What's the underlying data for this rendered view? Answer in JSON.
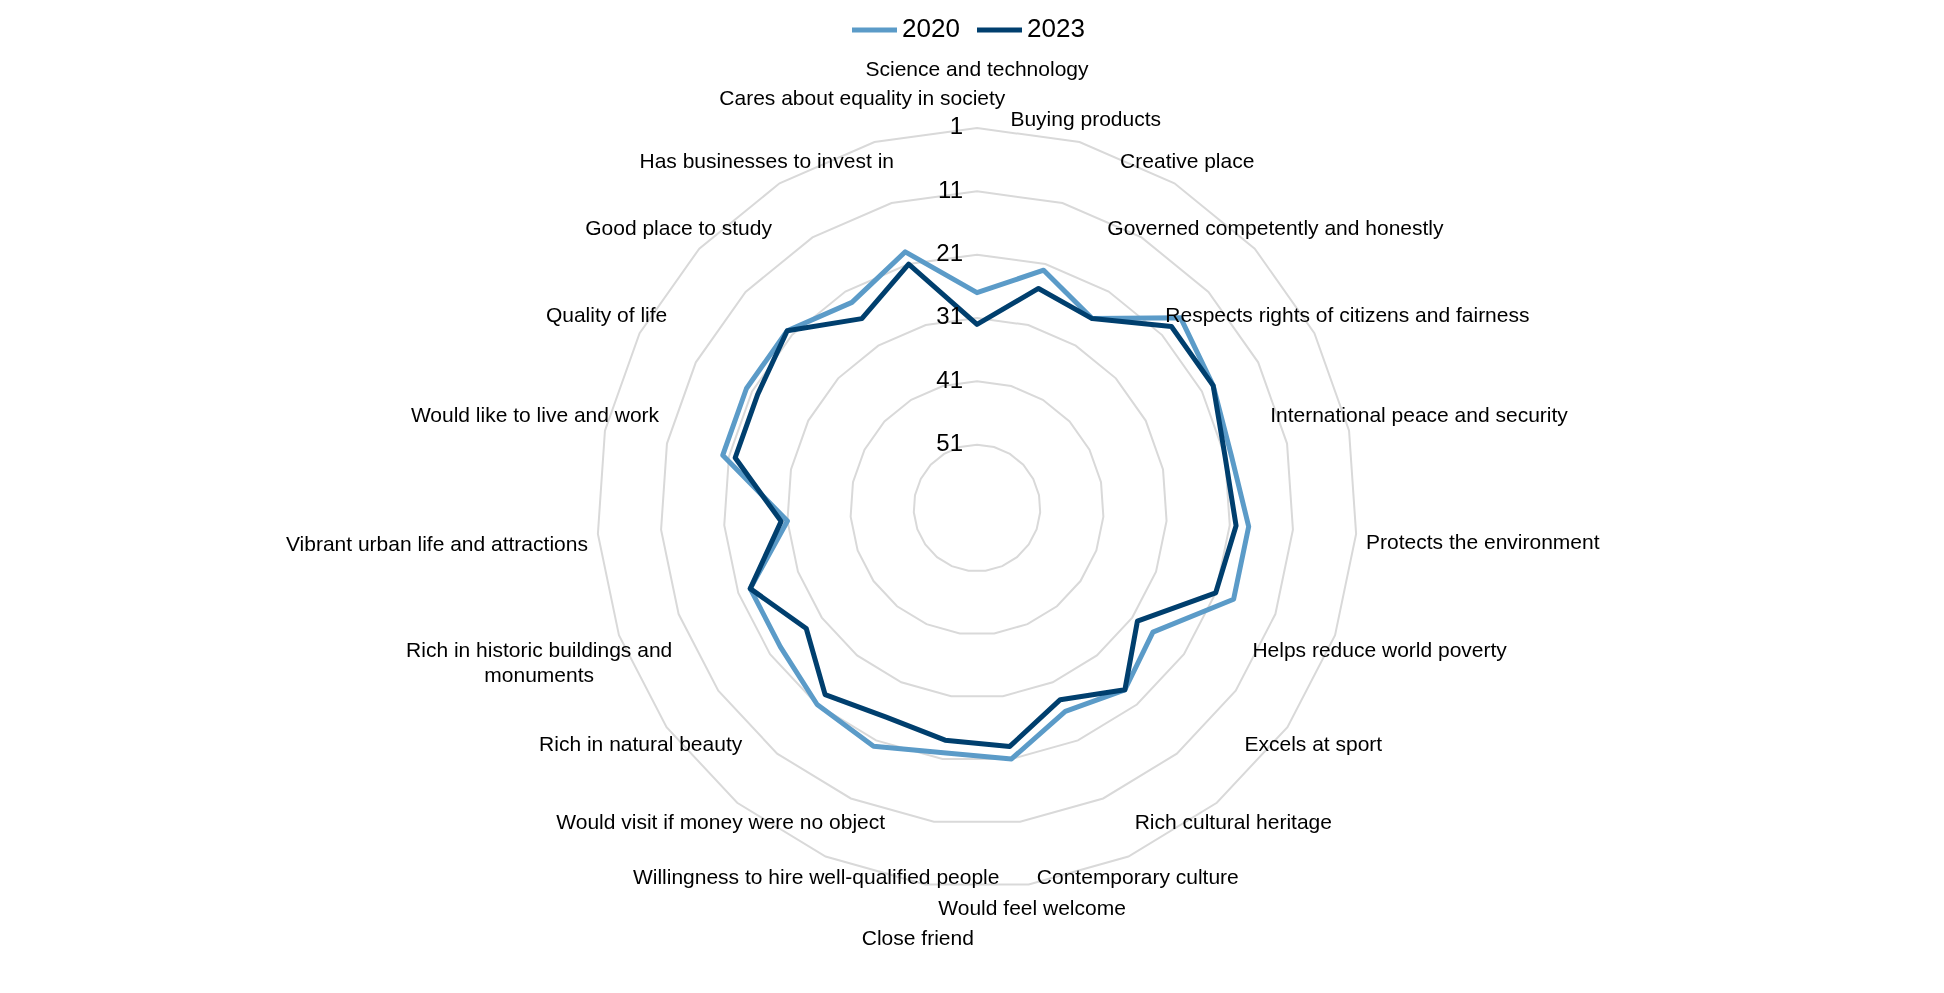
{
  "chart_data": {
    "type": "radar",
    "categories": [
      "Science and technology",
      "Buying products",
      "Creative place",
      "Governed competently and honestly",
      "Respects rights of citizens and fairness",
      "International peace and security",
      "Protects the environment",
      "Helps reduce world poverty",
      "Excels at sport",
      "Rich cultural heritage",
      "Contemporary culture",
      "Would feel welcome",
      "Close friend",
      "Willingness to hire well-qualified people",
      "Would visit if money were no object",
      "Rich in natural beauty",
      "Rich in historic buildings and monuments",
      "Vibrant urban life and attractions",
      "Would like to live and work",
      "Quality of life",
      "Good place to study",
      "Has businesses to invest in",
      "Cares about equality in society"
    ],
    "series": [
      {
        "name": "2020",
        "color": "#5b9bc8",
        "values": [
          27,
          22,
          26,
          17,
          19,
          20,
          18,
          18,
          27,
          24,
          26,
          21,
          22,
          20,
          21,
          23,
          23,
          31,
          20,
          20,
          20,
          23,
          19
        ]
      },
      {
        "name": "2023",
        "color": "#003f6e",
        "values": [
          32,
          25,
          26,
          19,
          19,
          21,
          20,
          21,
          30,
          24,
          28,
          23,
          24,
          25,
          23,
          28,
          23,
          30,
          22,
          22,
          20,
          26,
          21
        ]
      }
    ],
    "ylim": [
      61,
      1
    ],
    "yticks": [
      1,
      11,
      21,
      31,
      41,
      51
    ],
    "grid": true,
    "legend": "top",
    "line_style": "solid",
    "marker": "none"
  }
}
